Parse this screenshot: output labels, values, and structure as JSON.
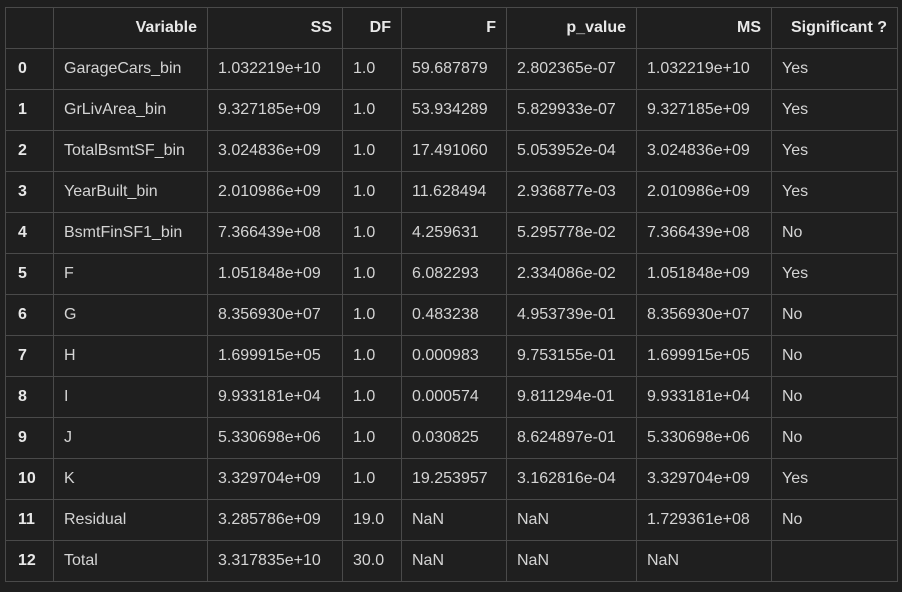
{
  "table": {
    "headers": [
      "",
      "Variable",
      "SS",
      "DF",
      "F",
      "p_value",
      "MS",
      "Significant ?"
    ],
    "rows": [
      [
        "0",
        "GarageCars_bin",
        "1.032219e+10",
        "1.0",
        "59.687879",
        "2.802365e-07",
        "1.032219e+10",
        "Yes"
      ],
      [
        "1",
        "GrLivArea_bin",
        "9.327185e+09",
        "1.0",
        "53.934289",
        "5.829933e-07",
        "9.327185e+09",
        "Yes"
      ],
      [
        "2",
        "TotalBsmtSF_bin",
        "3.024836e+09",
        "1.0",
        "17.491060",
        "5.053952e-04",
        "3.024836e+09",
        "Yes"
      ],
      [
        "3",
        "YearBuilt_bin",
        "2.010986e+09",
        "1.0",
        "11.628494",
        "2.936877e-03",
        "2.010986e+09",
        "Yes"
      ],
      [
        "4",
        "BsmtFinSF1_bin",
        "7.366439e+08",
        "1.0",
        "4.259631",
        "5.295778e-02",
        "7.366439e+08",
        "No"
      ],
      [
        "5",
        "F",
        "1.051848e+09",
        "1.0",
        "6.082293",
        "2.334086e-02",
        "1.051848e+09",
        "Yes"
      ],
      [
        "6",
        "G",
        "8.356930e+07",
        "1.0",
        "0.483238",
        "4.953739e-01",
        "8.356930e+07",
        "No"
      ],
      [
        "7",
        "H",
        "1.699915e+05",
        "1.0",
        "0.000983",
        "9.753155e-01",
        "1.699915e+05",
        "No"
      ],
      [
        "8",
        "I",
        "9.933181e+04",
        "1.0",
        "0.000574",
        "9.811294e-01",
        "9.933181e+04",
        "No"
      ],
      [
        "9",
        "J",
        "5.330698e+06",
        "1.0",
        "0.030825",
        "8.624897e-01",
        "5.330698e+06",
        "No"
      ],
      [
        "10",
        "K",
        "3.329704e+09",
        "1.0",
        "19.253957",
        "3.162816e-04",
        "3.329704e+09",
        "Yes"
      ],
      [
        "11",
        "Residual",
        "3.285786e+09",
        "19.0",
        "NaN",
        "NaN",
        "1.729361e+08",
        "No"
      ],
      [
        "12",
        "Total",
        "3.317835e+10",
        "30.0",
        "NaN",
        "NaN",
        "NaN",
        ""
      ]
    ]
  }
}
